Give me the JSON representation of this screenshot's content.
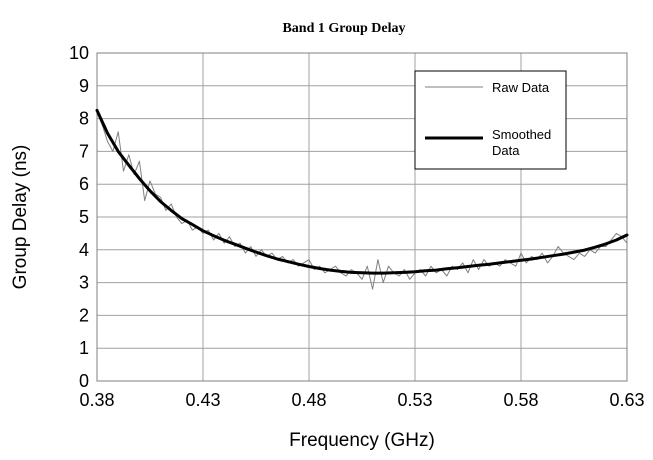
{
  "chart_data": {
    "type": "line",
    "title": "Band 1 Group Delay",
    "xlabel": "Frequency (GHz)",
    "ylabel": "Group Delay (ns)",
    "xlim": [
      0.38,
      0.63
    ],
    "ylim": [
      0,
      10
    ],
    "xticks": [
      "0.38",
      "0.43",
      "0.48",
      "0.53",
      "0.58",
      "0.63"
    ],
    "yticks": [
      "0",
      "1",
      "2",
      "3",
      "4",
      "5",
      "6",
      "7",
      "8",
      "9",
      "10"
    ],
    "grid": true,
    "legend_position": "top-right",
    "series": [
      {
        "name": "Raw Data",
        "color": "#808080",
        "style": "thin",
        "x": [
          0.38,
          0.3825,
          0.385,
          0.3875,
          0.39,
          0.3925,
          0.395,
          0.3975,
          0.4,
          0.4025,
          0.405,
          0.4075,
          0.41,
          0.4125,
          0.415,
          0.4175,
          0.42,
          0.4225,
          0.425,
          0.4275,
          0.43,
          0.4325,
          0.435,
          0.4375,
          0.44,
          0.4425,
          0.445,
          0.4475,
          0.45,
          0.4525,
          0.455,
          0.4575,
          0.46,
          0.4625,
          0.465,
          0.4675,
          0.47,
          0.4725,
          0.475,
          0.4775,
          0.48,
          0.4825,
          0.485,
          0.4875,
          0.49,
          0.4925,
          0.495,
          0.4975,
          0.5,
          0.5025,
          0.505,
          0.5075,
          0.51,
          0.5125,
          0.515,
          0.5175,
          0.52,
          0.5225,
          0.525,
          0.5275,
          0.53,
          0.5325,
          0.535,
          0.5375,
          0.54,
          0.5425,
          0.545,
          0.5475,
          0.55,
          0.5525,
          0.555,
          0.5575,
          0.56,
          0.5625,
          0.565,
          0.5675,
          0.57,
          0.5725,
          0.575,
          0.5775,
          0.58,
          0.5825,
          0.585,
          0.5875,
          0.59,
          0.5925,
          0.595,
          0.5975,
          0.6,
          0.6025,
          0.605,
          0.6075,
          0.61,
          0.6125,
          0.615,
          0.6175,
          0.62,
          0.6225,
          0.625,
          0.6275,
          0.63
        ],
        "values": [
          8.2,
          7.8,
          7.3,
          7.0,
          7.6,
          6.4,
          6.9,
          6.3,
          6.7,
          5.5,
          6.1,
          5.7,
          5.6,
          5.2,
          5.4,
          5.0,
          4.8,
          4.9,
          4.6,
          4.7,
          4.5,
          4.6,
          4.3,
          4.5,
          4.2,
          4.4,
          4.1,
          4.2,
          3.9,
          4.1,
          3.8,
          4.0,
          3.8,
          3.9,
          3.7,
          3.8,
          3.6,
          3.7,
          3.5,
          3.6,
          3.7,
          3.4,
          3.5,
          3.3,
          3.4,
          3.5,
          3.3,
          3.2,
          3.4,
          3.3,
          3.1,
          3.5,
          2.8,
          3.7,
          3.0,
          3.5,
          3.3,
          3.2,
          3.4,
          3.1,
          3.3,
          3.4,
          3.2,
          3.5,
          3.3,
          3.4,
          3.2,
          3.5,
          3.4,
          3.6,
          3.3,
          3.7,
          3.4,
          3.7,
          3.5,
          3.6,
          3.5,
          3.7,
          3.6,
          3.5,
          3.9,
          3.6,
          3.8,
          3.7,
          3.9,
          3.6,
          3.8,
          4.1,
          3.9,
          3.8,
          3.7,
          3.9,
          3.8,
          4.0,
          3.9,
          4.1,
          4.1,
          4.3,
          4.5,
          4.4,
          4.2
        ]
      },
      {
        "name": "Smoothed\nData",
        "color": "#000000",
        "style": "thick",
        "x": [
          0.38,
          0.385,
          0.39,
          0.395,
          0.4,
          0.405,
          0.41,
          0.415,
          0.42,
          0.425,
          0.43,
          0.435,
          0.44,
          0.445,
          0.45,
          0.455,
          0.46,
          0.465,
          0.47,
          0.475,
          0.48,
          0.485,
          0.49,
          0.495,
          0.5,
          0.505,
          0.51,
          0.515,
          0.52,
          0.525,
          0.53,
          0.535,
          0.54,
          0.545,
          0.55,
          0.555,
          0.56,
          0.565,
          0.57,
          0.575,
          0.58,
          0.585,
          0.59,
          0.595,
          0.6,
          0.605,
          0.61,
          0.615,
          0.62,
          0.625,
          0.63
        ],
        "values": [
          8.25,
          7.55,
          7.0,
          6.58,
          6.17,
          5.8,
          5.47,
          5.2,
          4.95,
          4.77,
          4.58,
          4.43,
          4.29,
          4.17,
          4.05,
          3.93,
          3.82,
          3.72,
          3.64,
          3.56,
          3.49,
          3.43,
          3.38,
          3.34,
          3.31,
          3.3,
          3.29,
          3.29,
          3.3,
          3.31,
          3.33,
          3.36,
          3.38,
          3.42,
          3.45,
          3.49,
          3.53,
          3.56,
          3.6,
          3.64,
          3.68,
          3.72,
          3.77,
          3.82,
          3.87,
          3.93,
          3.99,
          4.08,
          4.18,
          4.3,
          4.45
        ]
      }
    ]
  }
}
